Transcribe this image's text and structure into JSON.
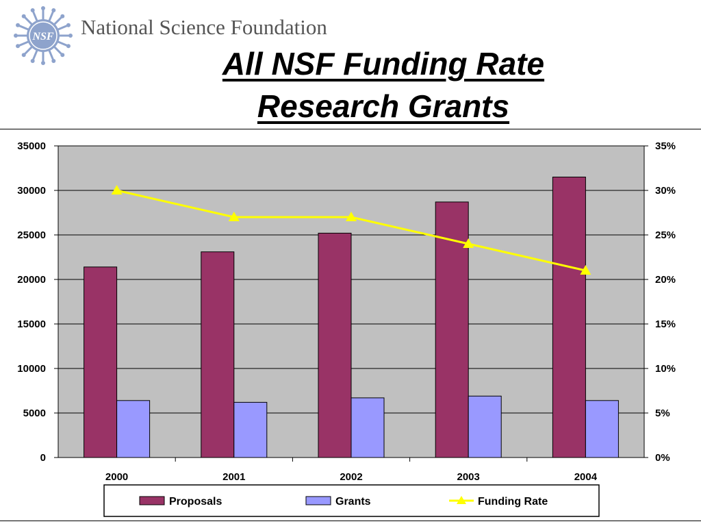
{
  "header": {
    "org_name": "National Science Foundation",
    "logo_text": "NSF",
    "title_line1": "All NSF Funding Rate",
    "title_line2": "Research Grants"
  },
  "colors": {
    "proposals": "#993366",
    "grants": "#9999ff",
    "funding_rate": "#ffff00",
    "plot_bg": "#c0c0c0",
    "logo": "#8ea3cc"
  },
  "chart_data": {
    "type": "bar",
    "categories": [
      "2000",
      "2001",
      "2002",
      "2003",
      "2004"
    ],
    "series": [
      {
        "name": "Proposals",
        "axis": "left",
        "values": [
          21400,
          23100,
          25200,
          28700,
          31500
        ]
      },
      {
        "name": "Grants",
        "axis": "left",
        "values": [
          6400,
          6200,
          6700,
          6900,
          6400
        ]
      },
      {
        "name": "Funding Rate",
        "type": "line",
        "axis": "right",
        "values": [
          30,
          27,
          27,
          24,
          21
        ]
      }
    ],
    "y_left": {
      "min": 0,
      "max": 35000,
      "ticks": [
        "35000",
        "30000",
        "25000",
        "20000",
        "15000",
        "10000",
        "5000",
        "0"
      ]
    },
    "y_right": {
      "min": 0,
      "max": 35,
      "unit": "%",
      "ticks": [
        "35%",
        "30%",
        "25%",
        "20%",
        "15%",
        "10%",
        "5%",
        "0%"
      ]
    },
    "grid": true,
    "legend_position": "bottom"
  }
}
